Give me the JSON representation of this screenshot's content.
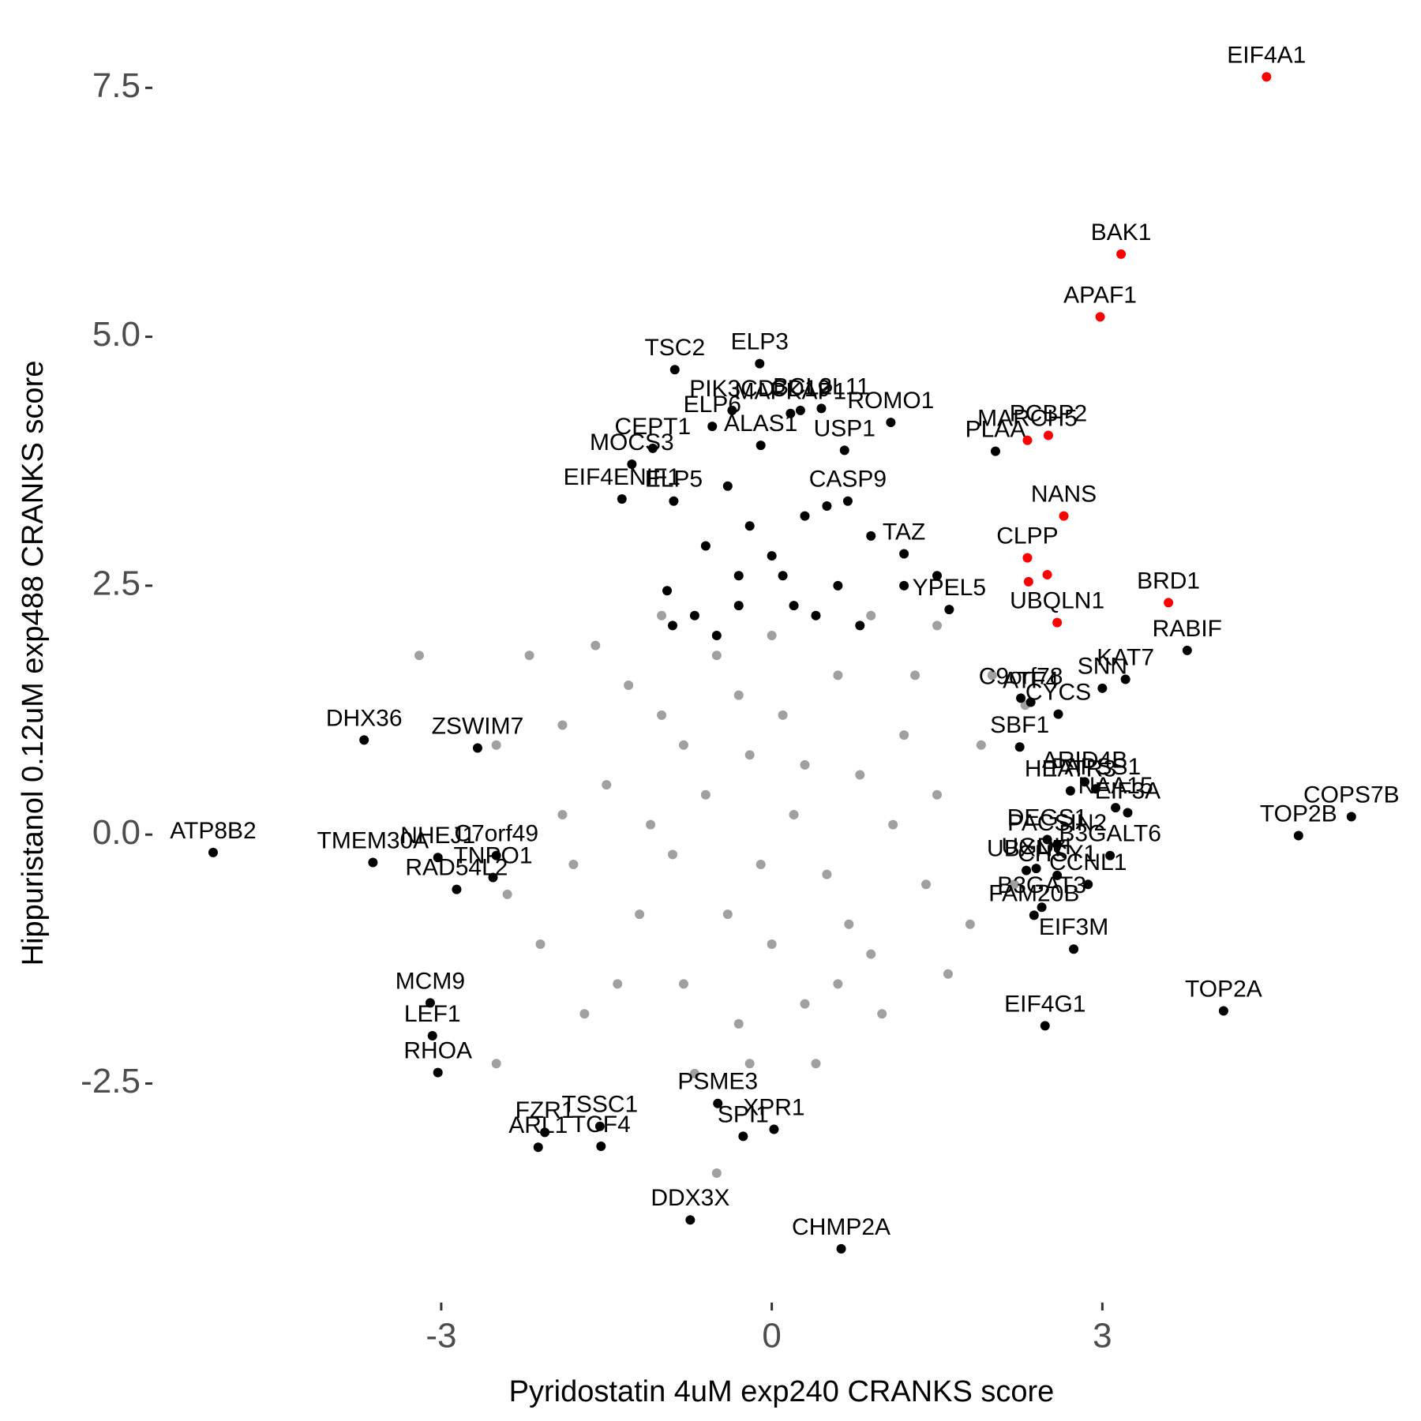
{
  "chart_data": {
    "type": "scatter",
    "x_label": "Pyridostatin 4uM exp240 CRANKS score",
    "y_label": "Hippuristanol 0.12uM exp488 CRANKS score",
    "xlim": [
      -5.6,
      5.77
    ],
    "ylim": [
      -4.7,
      8.2
    ],
    "xticks": [
      -3,
      0,
      3
    ],
    "yticks": [
      -2.5,
      {
        "value": 0,
        "label": "0.0"
      },
      2.5,
      {
        "value": 5,
        "label": "5.0"
      },
      7.5
    ],
    "grid": false,
    "series": [
      {
        "color": "#a0a0a0",
        "x": [
          -1.5,
          -1.2,
          -1,
          -0.8,
          -0.5,
          -0.3,
          0,
          0.3,
          0.6,
          0.9,
          1.2,
          1.4,
          1.5,
          -1.8,
          -1.9,
          -0.6,
          -0.2,
          0.2,
          0.5,
          -0.9,
          0.8,
          -0.4,
          0.1,
          -1.3,
          1,
          -2.1,
          -2.5,
          -2.5,
          -0.5,
          2,
          -1.6,
          1.8,
          -0.7,
          0.4,
          1.5,
          -2.2,
          -1.0,
          0.7,
          -0.1,
          0.3,
          -1.1,
          -0.3,
          1.1,
          -1.4,
          0.6,
          -2.4,
          2.2,
          1.9,
          -1.7,
          0,
          -0.8,
          1.3,
          -3.2,
          2.3,
          -1.9,
          0.9,
          -0.2,
          1.6
        ],
        "y": [
          0.5,
          -0.8,
          1.2,
          -1.5,
          1.8,
          -1.9,
          2,
          -1.7,
          1.6,
          -1.2,
          1,
          -0.5,
          0.4,
          -0.3,
          0.2,
          0.4,
          0.8,
          0.2,
          -0.4,
          -0.2,
          0.6,
          -0.8,
          1.2,
          1.5,
          -1.8,
          -1.1,
          0.9,
          -2.3,
          -3.4,
          1.6,
          1.9,
          -0.9,
          -2.4,
          -2.3,
          2.1,
          1.8,
          2.2,
          -0.9,
          -0.3,
          0.7,
          0.1,
          1.4,
          0.1,
          -1.5,
          -1.5,
          -0.6,
          -0.5,
          0.9,
          -1.8,
          -1.1,
          0.9,
          1.6,
          1.8,
          1.3,
          1.1,
          2.2,
          -2.3,
          -1.4
        ]
      },
      {
        "color": "#000000",
        "x": [
          -0.95,
          -0.7,
          -0.5,
          -0.3,
          0,
          0.2,
          0.4,
          0.6,
          0.8,
          -0.6,
          -0.2,
          0.3,
          -0.4,
          1.2,
          1.5,
          -0.9,
          0.1,
          0.5,
          0.9,
          -0.3,
          3.77,
          3.21,
          3.0,
          2.6,
          2.35,
          2.26,
          2.84,
          2.94,
          2.25,
          2.71,
          3.12,
          3.23,
          5.26,
          4.78,
          3.07,
          2.87,
          2.59,
          2.59,
          2.5,
          2.4,
          2.31,
          2.38,
          2.45,
          2.74,
          2.48,
          4.1,
          -3.7,
          -2.67,
          -5.07,
          -3.62,
          -3.03,
          -2.5,
          -2.53,
          -2.86,
          -3.1,
          -3.08,
          -3.03,
          -2.06,
          -2.12,
          -1.56,
          -1.55,
          -0.49,
          0.02,
          -0.26,
          -0.74,
          0.63,
          -0.88,
          -0.11,
          0.26,
          0.45,
          -0.36,
          0.17,
          -1.08,
          -0.54,
          -1.27,
          -1.36,
          -0.89,
          -0.1,
          0.66,
          1.08,
          2.03,
          0.69,
          1.2,
          1.61
        ],
        "y": [
          2.45,
          2.2,
          2.0,
          2.6,
          2.8,
          2.3,
          2.2,
          2.5,
          2.1,
          2.9,
          3.1,
          3.2,
          3.5,
          2.5,
          2.6,
          2.1,
          2.6,
          3.3,
          3.0,
          2.3,
          1.85,
          1.56,
          1.47,
          1.21,
          1.33,
          1.37,
          0.53,
          0.46,
          0.88,
          0.44,
          0.27,
          0.22,
          0.18,
          -0.01,
          -0.21,
          -0.5,
          -0.41,
          -0.1,
          -0.05,
          -0.34,
          -0.36,
          -0.81,
          -0.73,
          -1.15,
          -1.92,
          -1.77,
          0.95,
          0.87,
          -0.18,
          -0.28,
          -0.23,
          -0.21,
          -0.43,
          -0.55,
          -1.69,
          -2.02,
          -2.39,
          -2.99,
          -3.14,
          -2.93,
          -3.13,
          -2.7,
          -2.96,
          -3.03,
          -3.87,
          -4.16,
          4.67,
          4.73,
          4.26,
          4.28,
          4.26,
          4.23,
          3.88,
          4.1,
          3.72,
          3.37,
          3.35,
          3.91,
          3.86,
          4.14,
          3.85,
          3.35,
          2.82,
          2.26
        ],
        "labels": [
          null,
          null,
          null,
          null,
          null,
          null,
          null,
          null,
          null,
          null,
          null,
          null,
          null,
          null,
          null,
          null,
          null,
          null,
          null,
          null,
          "RABIF",
          "KAT7",
          "SNN",
          "CYCS",
          "ATF4",
          "C9orf78",
          "ARID4B",
          "PAPSS1",
          "SBF1",
          "HEATR3",
          "NAA15",
          "EIF3A",
          "COPS7B",
          "TOP2B",
          "B3GALT6",
          "CCNL1",
          "CHSY1",
          "PACSIN2",
          "DEGS1",
          "UGDH",
          "UBXN7",
          "FAM20B",
          "B3GAT3",
          "EIF3M",
          "EIF4G1",
          "TOP2A",
          "DHX36",
          "ZSWIM7",
          "ATP8B2",
          "TMEM30A",
          "NHEJ1",
          "C7orf49",
          "TNPO1",
          "RAD54L2",
          "MCM9",
          "LEF1",
          "RHOA",
          "FZR1",
          "ARL1",
          "TSSC1",
          "TCF4",
          "PSME3",
          "XPR1",
          "SPI1",
          "DDX3X",
          "CHMP2A",
          "TSC2",
          "ELP3",
          "CD19",
          "BCL2L11",
          "PIK3CD",
          "MAPKAP1",
          "CEPT1",
          "ELP6",
          "MOCS3",
          "EIF4ENIF1",
          "ELP5",
          "ALAS1",
          "USP1",
          "ROMO1",
          "PLAA",
          "CASP9",
          "TAZ",
          "YPEL5"
        ]
      },
      {
        "color": "#ff0000",
        "x": [
          4.49,
          3.17,
          2.98,
          2.32,
          2.51,
          2.65,
          2.32,
          2.5,
          2.33,
          3.6,
          2.59
        ],
        "y": [
          7.61,
          5.83,
          5.2,
          3.96,
          4.01,
          3.2,
          2.78,
          2.61,
          2.54,
          2.33,
          2.13
        ],
        "labels": [
          "EIF4A1",
          "BAK1",
          "APAF1",
          "MARCH5",
          "PCBP2",
          "NANS",
          "CLPP",
          null,
          null,
          "BRD1",
          "UBQLN1"
        ]
      }
    ]
  }
}
